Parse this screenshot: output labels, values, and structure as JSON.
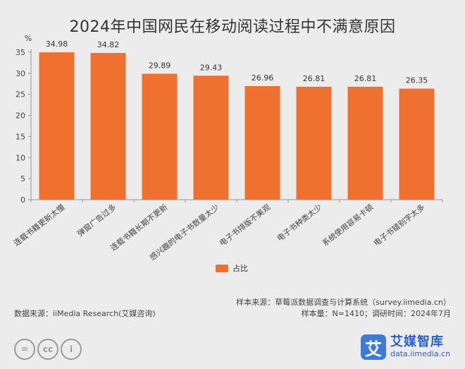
{
  "chart_data": {
    "type": "bar",
    "title": "2024年中国网民在移动阅读过程中不满意原因",
    "ylabel": "%",
    "xlabel": "",
    "ylim": [
      0,
      35
    ],
    "yticks": [
      0,
      5,
      10,
      15,
      20,
      25,
      30,
      35
    ],
    "categories": [
      "连载书籍更新太慢",
      "弹窗广告过多",
      "连载书籍长期不更新",
      "感兴趣的电子书数量太少",
      "电子书排版不美观",
      "电子书种类太少",
      "系统使用容易卡顿",
      "电子书错别字太多"
    ],
    "series": [
      {
        "name": "占比",
        "values": [
          34.98,
          34.82,
          29.89,
          29.43,
          26.96,
          26.81,
          26.81,
          26.35
        ]
      }
    ],
    "data_labels": [
      "34.98",
      "34.82",
      "29.89",
      "29.43",
      "26.96",
      "26.81",
      "26.81",
      "26.35"
    ],
    "legend_position": "bottom",
    "grid": false,
    "bar_color": "#f07030"
  },
  "legend_label": "占比",
  "footer": {
    "sample_source": "样本来源：草莓派数据调查与计算系统（survey.iimedia.cn）",
    "data_source": "数据来源：iiMedia Research(艾媒咨询)",
    "sample_info": "样本量：N=1410；调研时间：2024年7月"
  },
  "brand": {
    "logo_char": "艾",
    "name": "艾媒智库",
    "url": "data.iimedia.cn"
  },
  "license_icons": [
    "cc-equal-icon",
    "cc-icon",
    "cc-person-icon"
  ],
  "license_glyphs": [
    "=",
    "cc",
    "i"
  ]
}
